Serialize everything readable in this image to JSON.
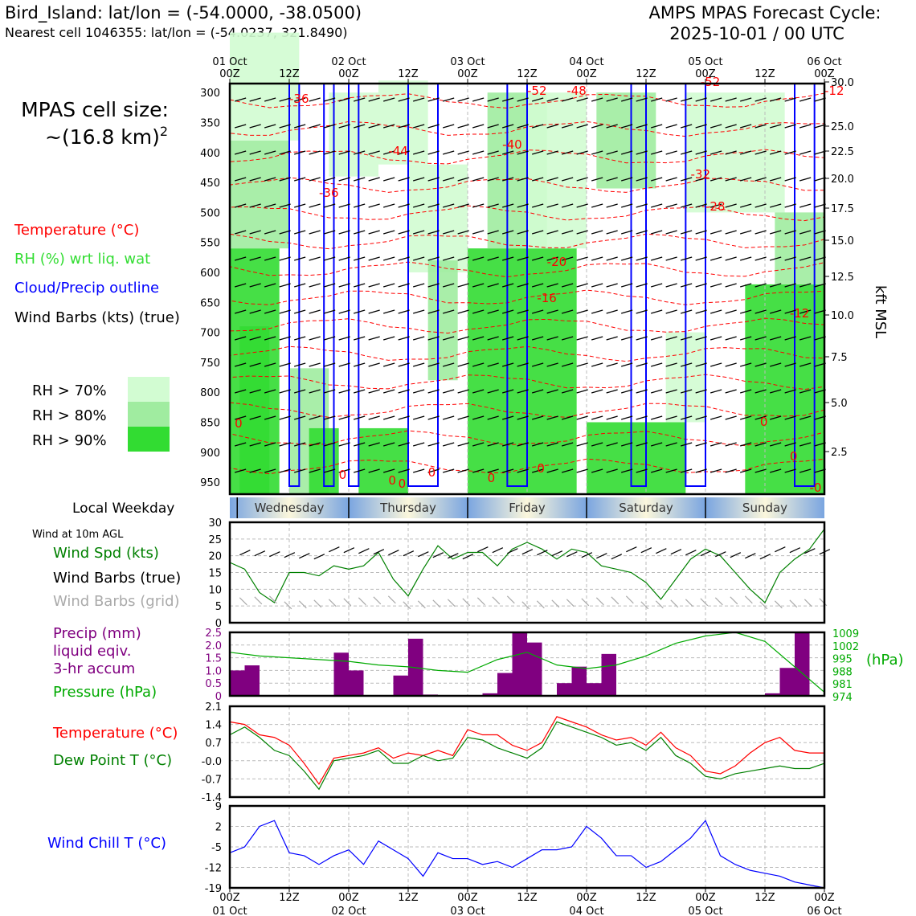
{
  "header": {
    "station": "Bird_Island: lat/lon = (-54.0000, -38.0500)",
    "nearest": "Nearest cell 1046355: lat/lon = (-54.0237, 321.8490)",
    "cycle_title": "AMPS MPAS Forecast Cycle:",
    "cycle_time": "2025-10-01 / 00 UTC"
  },
  "left_legend": {
    "cell_size_line1": "MPAS cell size:",
    "cell_size_line2": "~(16.8 km)",
    "cell_size_exp": "2",
    "temperature": "Temperature (°C)",
    "rh": "RH (%) wrt liq. wat",
    "cloud": "Cloud/Precip outline",
    "wind": "Wind Barbs (kts) (true)",
    "rh70": "RH > 70%",
    "rh80": "RH > 80%",
    "rh90": "RH > 90%",
    "rh_colors": [
      "#d2fcd2",
      "#a0eca0",
      "#32dc32"
    ]
  },
  "time_axis": {
    "top_ticks": [
      {
        "hour": "00Z",
        "date": "01 Oct"
      },
      {
        "hour": "12Z",
        "date": ""
      },
      {
        "hour": "00Z",
        "date": "02 Oct"
      },
      {
        "hour": "12Z",
        "date": ""
      },
      {
        "hour": "00Z",
        "date": "03 Oct"
      },
      {
        "hour": "12Z",
        "date": ""
      },
      {
        "hour": "00Z",
        "date": "04 Oct"
      },
      {
        "hour": "12Z",
        "date": ""
      },
      {
        "hour": "00Z",
        "date": "05 Oct"
      },
      {
        "hour": "12Z",
        "date": ""
      },
      {
        "hour": "00Z",
        "date": "06 Oct"
      }
    ]
  },
  "weekday": {
    "label": "Local Weekday",
    "days": [
      "Wednesday",
      "Thursday",
      "Friday",
      "Saturday",
      "Sunday"
    ]
  },
  "chart_data": [
    {
      "type": "cross-section",
      "name": "time-height",
      "x_range_hours": [
        0,
        120
      ],
      "y_label_right": "kft MSL",
      "pressure_ticks": [
        "300",
        "350",
        "400",
        "450",
        "500",
        "550",
        "600",
        "650",
        "700",
        "750",
        "800",
        "850",
        "900",
        "950"
      ],
      "kft_ticks": [
        "30.0",
        "25.0",
        "22.5",
        "20.0",
        "17.5",
        "15.0",
        "12.5",
        "10.0",
        "7.5",
        "5.0",
        "2.5"
      ],
      "temperature_contour_labels": [
        "-52",
        "-48",
        "-52",
        "-12",
        "-36",
        "-44",
        "-40",
        "-36",
        "-32",
        "-28",
        "-20",
        "-16",
        "-12",
        "0",
        "0",
        "0",
        "0",
        "0",
        "0",
        "0",
        "0",
        "-0",
        "0"
      ]
    },
    {
      "type": "line",
      "name": "wind-10m",
      "title": "Wind at 10m AGL",
      "series_label": "Wind Spd (kts)",
      "barbs_true_label": "Wind Barbs (true)",
      "barbs_grid_label": "Wind Barbs (grid)",
      "ylim": [
        0,
        30
      ],
      "y_ticks": [
        "30",
        "25",
        "20",
        "15",
        "10",
        "5",
        "0"
      ],
      "x_hours": [
        0,
        3,
        6,
        9,
        12,
        15,
        18,
        21,
        24,
        27,
        30,
        33,
        36,
        39,
        42,
        45,
        48,
        51,
        54,
        57,
        60,
        63,
        66,
        69,
        72,
        75,
        78,
        81,
        84,
        87,
        90,
        93,
        96,
        99,
        102,
        105,
        108,
        111,
        114,
        117,
        120
      ],
      "values": [
        18,
        16,
        9,
        6,
        15,
        15,
        14,
        17,
        16,
        17,
        21,
        13,
        8,
        16,
        23,
        19,
        21,
        21,
        17,
        22,
        24,
        22,
        19,
        22,
        21,
        17,
        16,
        15,
        12,
        7,
        13,
        19,
        22,
        20,
        15,
        10,
        6,
        15,
        19,
        22,
        28
      ]
    },
    {
      "type": "bar+line",
      "name": "precip-pressure",
      "precip_label": "Precip (mm)",
      "precip_label2": "liquid eqiv.",
      "precip_label3": "3-hr accum",
      "pressure_label": "Pressure (hPa)",
      "pressure_unit": "(hPa)",
      "precip_ylim": [
        0,
        2.5
      ],
      "precip_ticks": [
        "2.5",
        "2.0",
        "1.5",
        "1.0",
        "0.5",
        "0"
      ],
      "pressure_ticks": [
        "1009",
        "1002",
        "995",
        "988",
        "981",
        "974"
      ],
      "precip_hours": [
        3,
        6,
        24,
        27,
        36,
        39,
        42,
        54,
        57,
        60,
        63,
        69,
        72,
        75,
        78,
        111,
        114,
        117
      ],
      "precip_values": [
        1.0,
        1.2,
        1.7,
        1.0,
        0.8,
        2.25,
        0.05,
        0.1,
        0.9,
        2.5,
        2.1,
        0.5,
        1.15,
        0.5,
        1.65,
        0.1,
        1.1,
        2.5
      ],
      "pressure_x_hours": [
        0,
        6,
        12,
        18,
        24,
        30,
        36,
        42,
        48,
        54,
        60,
        66,
        72,
        78,
        84,
        90,
        96,
        102,
        108,
        114,
        120
      ],
      "pressure_values": [
        998,
        996,
        995,
        994,
        993,
        991,
        990,
        988,
        987,
        994,
        998,
        991,
        989,
        991,
        996,
        1003,
        1007,
        1009,
        1004,
        990,
        976
      ]
    },
    {
      "type": "line",
      "name": "temp-dew",
      "temp_label": "Temperature (°C)",
      "dew_label": "Dew Point T (°C)",
      "ylim": [
        -1.4,
        2.1
      ],
      "y_ticks": [
        "2.1",
        "1.4",
        "0.7",
        "-0.0",
        "-0.7",
        "-1.4"
      ],
      "x_hours": [
        0,
        3,
        6,
        9,
        12,
        15,
        18,
        21,
        24,
        27,
        30,
        33,
        36,
        39,
        42,
        45,
        48,
        51,
        54,
        57,
        60,
        63,
        66,
        69,
        72,
        75,
        78,
        81,
        84,
        87,
        90,
        93,
        96,
        99,
        102,
        105,
        108,
        111,
        114,
        117,
        120
      ],
      "temperature": [
        1.5,
        1.4,
        1.0,
        0.9,
        0.6,
        -0.1,
        -0.9,
        0.1,
        0.2,
        0.3,
        0.5,
        0.1,
        0.3,
        0.2,
        0.4,
        0.2,
        1.2,
        1.0,
        1.0,
        0.6,
        0.4,
        0.7,
        1.7,
        1.5,
        1.3,
        1.0,
        0.8,
        0.9,
        0.6,
        1.1,
        0.5,
        0.2,
        -0.4,
        -0.5,
        -0.2,
        0.3,
        0.7,
        0.9,
        0.4,
        0.3,
        0.3
      ],
      "dew_point": [
        1.0,
        1.3,
        0.9,
        0.4,
        0.2,
        -0.4,
        -1.1,
        0.0,
        0.1,
        0.2,
        0.4,
        -0.1,
        -0.1,
        0.2,
        0.0,
        0.1,
        0.9,
        0.8,
        0.5,
        0.3,
        0.1,
        0.5,
        1.5,
        1.3,
        1.1,
        0.9,
        0.6,
        0.7,
        0.4,
        0.9,
        0.2,
        -0.1,
        -0.6,
        -0.7,
        -0.5,
        -0.4,
        -0.3,
        -0.2,
        -0.3,
        -0.3,
        -0.1
      ]
    },
    {
      "type": "line",
      "name": "wind-chill",
      "series_label": "Wind Chill T (°C)",
      "ylim": [
        -19,
        9
      ],
      "y_ticks": [
        "9",
        "2",
        "-5",
        "-12",
        "-19"
      ],
      "x_hours": [
        0,
        3,
        6,
        9,
        12,
        15,
        18,
        21,
        24,
        27,
        30,
        33,
        36,
        39,
        42,
        45,
        48,
        51,
        54,
        57,
        60,
        63,
        66,
        69,
        72,
        75,
        78,
        81,
        84,
        87,
        90,
        93,
        96,
        99,
        102,
        105,
        108,
        111,
        114,
        117,
        120
      ],
      "values": [
        -7,
        -5,
        2,
        4,
        -7,
        -8,
        -11,
        -8,
        -6,
        -11,
        -3,
        -6,
        -9,
        -15,
        -7,
        -9,
        -9,
        -11,
        -10,
        -12,
        -9,
        -6,
        -6,
        -5,
        2,
        -2,
        -8,
        -8,
        -12,
        -10,
        -6,
        -2,
        4,
        -8,
        -11,
        -13,
        -14,
        -15,
        -17,
        -18,
        -19
      ]
    },
    {
      "type": "axis",
      "name": "bottom-time-axis",
      "ticks": [
        {
          "hour": "00Z",
          "date": "01 Oct"
        },
        {
          "hour": "12Z",
          "date": ""
        },
        {
          "hour": "00Z",
          "date": "02 Oct"
        },
        {
          "hour": "12Z",
          "date": ""
        },
        {
          "hour": "00Z",
          "date": "03 Oct"
        },
        {
          "hour": "12Z",
          "date": ""
        },
        {
          "hour": "00Z",
          "date": "04 Oct"
        },
        {
          "hour": "12Z",
          "date": ""
        },
        {
          "hour": "00Z",
          "date": "05 Oct"
        },
        {
          "hour": "12Z",
          "date": ""
        },
        {
          "hour": "00Z",
          "date": "06 Oct"
        }
      ]
    }
  ]
}
